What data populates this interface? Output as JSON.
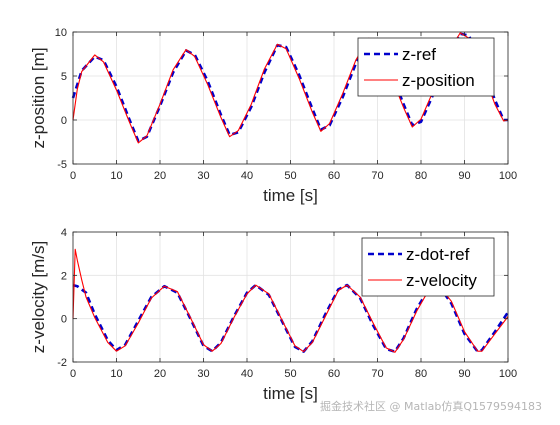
{
  "chart_data": [
    {
      "type": "line",
      "xlabel": "time [s]",
      "ylabel": "z-position [m]",
      "xlim": [
        0,
        100
      ],
      "ylim": [
        -5,
        10
      ],
      "xticks": [
        0,
        10,
        20,
        30,
        40,
        50,
        60,
        70,
        80,
        90,
        100
      ],
      "yticks": [
        -5,
        0,
        5,
        10
      ],
      "grid": true,
      "legend_position": "top-right",
      "series": [
        {
          "name": "z-ref",
          "style": "dashed",
          "color": "#0000CC",
          "x": [
            0,
            2,
            5,
            7,
            10,
            13,
            15,
            17,
            20,
            23,
            26,
            28,
            31,
            34,
            36,
            38,
            41,
            44,
            47,
            49,
            52,
            55,
            57,
            59,
            62,
            65,
            68,
            70,
            73,
            76,
            78,
            80,
            83,
            86,
            89,
            91,
            94,
            97,
            99,
            100
          ],
          "y": [
            2.5,
            5.6,
            7.2,
            6.8,
            3.8,
            0.0,
            -2.4,
            -1.9,
            1.6,
            5.4,
            7.9,
            7.4,
            4.4,
            0.6,
            -1.7,
            -1.4,
            1.5,
            5.4,
            8.5,
            8.3,
            5.1,
            1.3,
            -1.1,
            -0.6,
            2.6,
            6.4,
            9.1,
            8.9,
            5.5,
            1.8,
            -0.6,
            -0.2,
            3.1,
            7.0,
            9.8,
            9.6,
            6.2,
            2.3,
            0.0,
            0.0
          ]
        },
        {
          "name": "z-position",
          "style": "solid",
          "color": "#FF0000",
          "x": [
            0,
            1,
            2,
            5,
            7,
            10,
            13,
            15,
            17,
            20,
            23,
            26,
            28,
            31,
            34,
            36,
            38,
            41,
            44,
            47,
            49,
            52,
            55,
            57,
            59,
            62,
            65,
            68,
            70,
            73,
            76,
            78,
            80,
            83,
            86,
            89,
            91,
            94,
            97,
            99,
            100
          ],
          "y": [
            0.0,
            3.5,
            5.5,
            7.4,
            6.6,
            3.4,
            -0.3,
            -2.6,
            -1.8,
            1.8,
            5.7,
            8.0,
            7.2,
            4.0,
            0.3,
            -1.9,
            -1.2,
            1.8,
            5.8,
            8.6,
            8.1,
            4.7,
            0.9,
            -1.3,
            -0.4,
            3.0,
            6.8,
            9.3,
            8.6,
            5.1,
            1.4,
            -0.8,
            0.1,
            3.5,
            7.4,
            9.9,
            9.3,
            5.8,
            1.8,
            -0.1,
            0.0
          ]
        }
      ]
    },
    {
      "type": "line",
      "xlabel": "time [s]",
      "ylabel": "z-velocity [m/s]",
      "xlim": [
        0,
        100
      ],
      "ylim": [
        -2,
        4
      ],
      "xticks": [
        0,
        10,
        20,
        30,
        40,
        50,
        60,
        70,
        80,
        90,
        100
      ],
      "yticks": [
        -2,
        0,
        2,
        4
      ],
      "grid": true,
      "legend_position": "top-right",
      "series": [
        {
          "name": "z-dot-ref",
          "style": "dashed",
          "color": "#0000CC",
          "x": [
            0,
            1,
            3,
            5,
            8,
            10,
            12,
            15,
            18,
            21,
            24,
            27,
            30,
            32,
            34,
            37,
            40,
            42,
            45,
            48,
            51,
            53,
            55,
            58,
            61,
            63,
            66,
            69,
            72,
            74,
            76,
            79,
            82,
            84,
            87,
            90,
            93,
            94,
            97,
            100
          ],
          "y": [
            1.55,
            1.5,
            1.2,
            0.2,
            -1.0,
            -1.45,
            -1.2,
            -0.1,
            1.0,
            1.5,
            1.2,
            0.0,
            -1.25,
            -1.5,
            -1.1,
            0.1,
            1.2,
            1.55,
            1.1,
            -0.1,
            -1.3,
            -1.52,
            -1.05,
            0.2,
            1.35,
            1.55,
            0.95,
            -0.3,
            -1.4,
            -1.52,
            -0.9,
            0.45,
            1.45,
            1.55,
            0.7,
            -0.7,
            -1.52,
            -1.45,
            -0.6,
            0.3
          ]
        },
        {
          "name": "z-velocity",
          "style": "solid",
          "color": "#FF0000",
          "x": [
            0,
            0.5,
            1,
            2,
            3,
            5,
            8,
            10,
            12,
            15,
            18,
            21,
            24,
            27,
            30,
            32,
            34,
            37,
            40,
            42,
            45,
            48,
            51,
            53,
            55,
            58,
            61,
            63,
            66,
            69,
            72,
            74,
            76,
            79,
            82,
            84,
            87,
            90,
            93,
            94,
            97,
            100
          ],
          "y": [
            0.0,
            3.2,
            2.7,
            1.8,
            1.0,
            0.05,
            -1.1,
            -1.5,
            -1.25,
            -0.2,
            0.95,
            1.5,
            1.25,
            0.05,
            -1.2,
            -1.5,
            -1.15,
            0.05,
            1.15,
            1.55,
            1.15,
            -0.05,
            -1.25,
            -1.52,
            -1.1,
            0.1,
            1.3,
            1.55,
            1.0,
            -0.2,
            -1.35,
            -1.55,
            -0.95,
            0.35,
            1.4,
            1.55,
            0.8,
            -0.6,
            -1.5,
            -1.5,
            -0.7,
            0.1
          ]
        }
      ]
    }
  ],
  "watermark": "掘金技术社区 @ Matlab仿真Q1579594183"
}
